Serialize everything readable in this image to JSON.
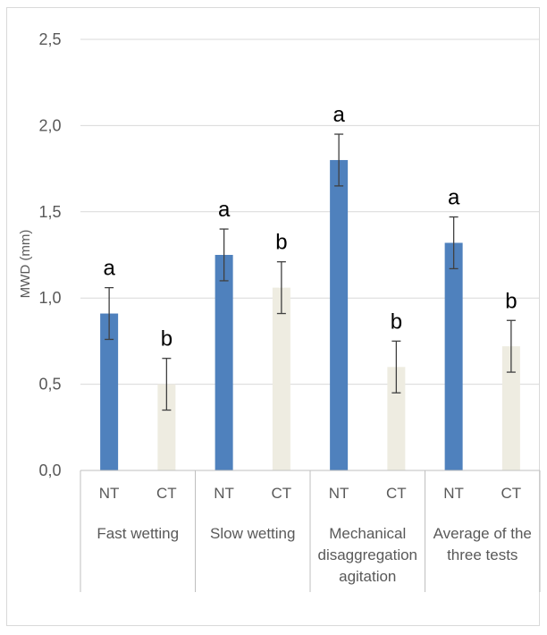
{
  "chart_data": {
    "type": "bar",
    "title": "",
    "ylabel": "MWD (mm)",
    "xlabel": "",
    "ylim": [
      0,
      2.5
    ],
    "yticks": [
      "0,0",
      "0,5",
      "1,0",
      "1,5",
      "2,0",
      "2,5"
    ],
    "ytick_values": [
      0,
      0.5,
      1.0,
      1.5,
      2.0,
      2.5
    ],
    "grid": true,
    "legend": "none",
    "groups": [
      {
        "label_lines": [
          "Fast wetting"
        ],
        "bars": [
          {
            "category": "NT",
            "value": 0.91,
            "error": 0.15,
            "letter": "a",
            "color": "#4f81bd"
          },
          {
            "category": "CT",
            "value": 0.5,
            "error": 0.15,
            "letter": "b",
            "color": "#eeece1"
          }
        ]
      },
      {
        "label_lines": [
          "Slow wetting"
        ],
        "bars": [
          {
            "category": "NT",
            "value": 1.25,
            "error": 0.15,
            "letter": "a",
            "color": "#4f81bd"
          },
          {
            "category": "CT",
            "value": 1.06,
            "error": 0.15,
            "letter": "b",
            "color": "#eeece1"
          }
        ]
      },
      {
        "label_lines": [
          "Mechanical",
          "disaggregation",
          "agitation"
        ],
        "bars": [
          {
            "category": "NT",
            "value": 1.8,
            "error": 0.15,
            "letter": "a",
            "color": "#4f81bd"
          },
          {
            "category": "CT",
            "value": 0.6,
            "error": 0.15,
            "letter": "b",
            "color": "#eeece1"
          }
        ]
      },
      {
        "label_lines": [
          "Average of the",
          "three tests"
        ],
        "bars": [
          {
            "category": "NT",
            "value": 1.32,
            "error": 0.15,
            "letter": "a",
            "color": "#4f81bd"
          },
          {
            "category": "CT",
            "value": 0.72,
            "error": 0.15,
            "letter": "b",
            "color": "#eeece1"
          }
        ]
      }
    ]
  }
}
